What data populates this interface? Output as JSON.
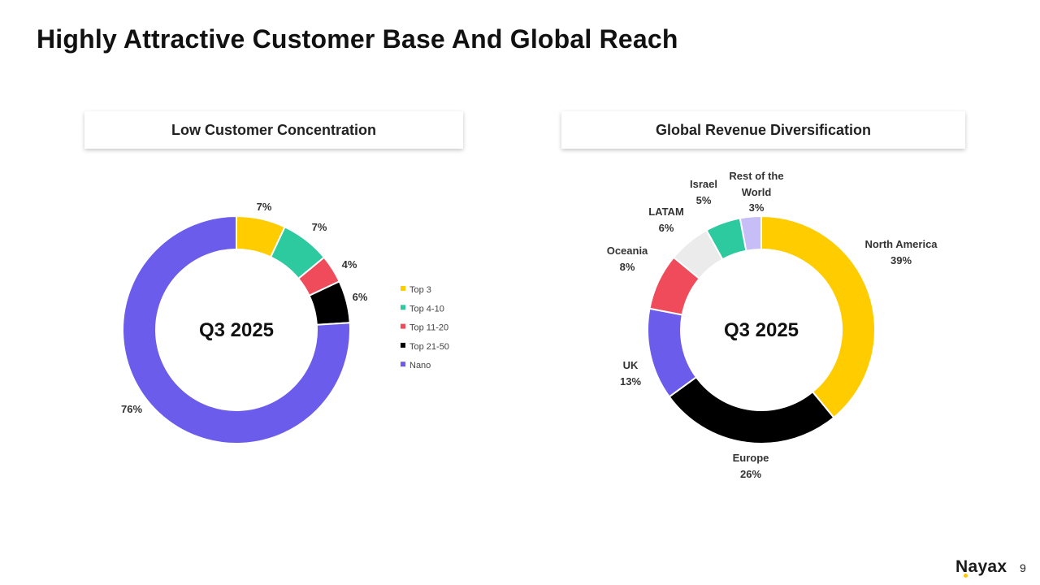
{
  "page": {
    "title": "Highly Attractive Customer Base And Global Reach",
    "page_number": "9",
    "logo_text": "Nayax"
  },
  "chart_data": [
    {
      "type": "pie",
      "title": "Low Customer Concentration",
      "center_label": "Q3 2025",
      "donut": true,
      "legend_position": "right",
      "slices": [
        {
          "name": "Top 3",
          "value": 7,
          "label": "7%",
          "color": "#FFCC00"
        },
        {
          "name": "Top 4-10",
          "value": 7,
          "label": "7%",
          "color": "#2DC99F"
        },
        {
          "name": "Top 11-20",
          "value": 4,
          "label": "4%",
          "color": "#F04B5B"
        },
        {
          "name": "Top 21-50",
          "value": 6,
          "label": "6%",
          "color": "#000000"
        },
        {
          "name": "Nano",
          "value": 76,
          "label": "76%",
          "color": "#6B5CEB"
        }
      ]
    },
    {
      "type": "pie",
      "title": "Global Revenue Diversification",
      "center_label": "Q3 2025",
      "donut": true,
      "slices": [
        {
          "name": "North America",
          "value": 39,
          "label": "39%",
          "color": "#FFCC00"
        },
        {
          "name": "Europe",
          "value": 26,
          "label": "26%",
          "color": "#000000"
        },
        {
          "name": "UK",
          "value": 13,
          "label": "13%",
          "color": "#6B5CEB"
        },
        {
          "name": "Oceania",
          "value": 8,
          "label": "8%",
          "color": "#F04B5B"
        },
        {
          "name": "LATAM",
          "value": 6,
          "label": "6%",
          "color": "#EBEBEB"
        },
        {
          "name": "Israel",
          "value": 5,
          "label": "5%",
          "color": "#2DC99F"
        },
        {
          "name": "Rest of the World",
          "value": 3,
          "label": "3%",
          "color": "#C8BEF7"
        }
      ]
    }
  ]
}
